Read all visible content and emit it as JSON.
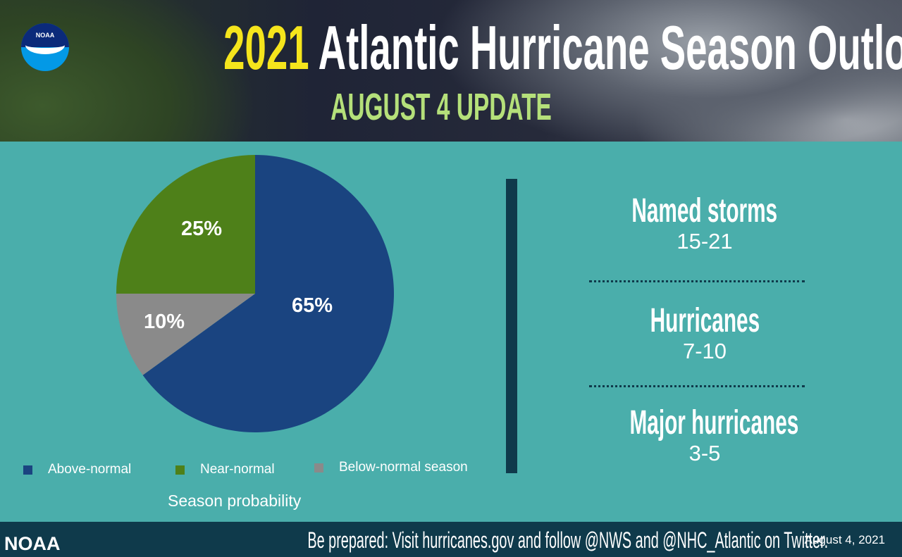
{
  "header": {
    "year": "2021",
    "title": "Atlantic Hurricane Season Outlook",
    "subtitle": "AUGUST 4 UPDATE",
    "logo_text": "NOAA"
  },
  "chart_data": {
    "type": "pie",
    "title": "Season probability",
    "categories": [
      "Above-normal",
      "Near-normal",
      "Below-normal season"
    ],
    "values": [
      65,
      25,
      10
    ],
    "data_labels": [
      "65%",
      "25%",
      "10%"
    ],
    "colors": [
      "#1a4480",
      "#4e8019",
      "#8a8a8a"
    ],
    "legend_position": "bottom"
  },
  "stats": [
    {
      "label": "Named storms",
      "value": "15-21"
    },
    {
      "label": "Hurricanes",
      "value": "7-10"
    },
    {
      "label": "Major hurricanes",
      "value": "3-5"
    }
  ],
  "footer": {
    "brand": "NOAA",
    "message": "Be prepared: Visit hurricanes.gov and follow @NWS and @NHC_Atlantic on Twitter.",
    "date": "August 4, 2021"
  }
}
